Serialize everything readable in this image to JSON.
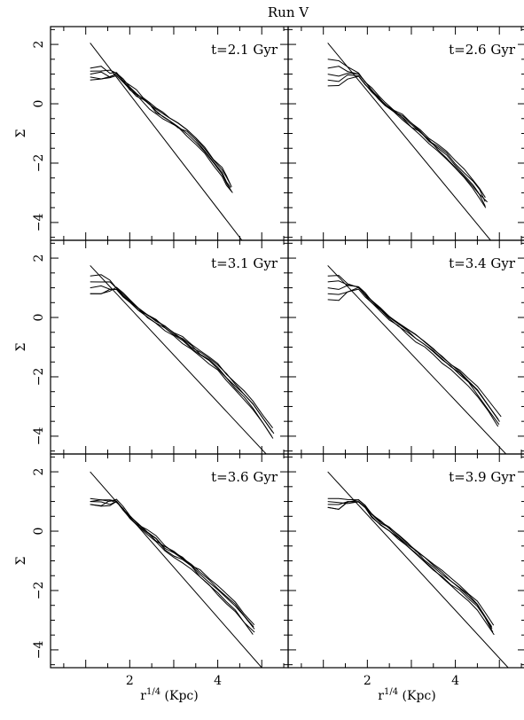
{
  "figure": {
    "title": "Run V",
    "ylabel": "Σ",
    "xlabel_base": "r",
    "xlabel_sup": "1/4",
    "xlabel_unit": "(Kpc)"
  },
  "chart_data": [
    {
      "type": "line",
      "annotation": "t=2.1 Gyr",
      "xlim": [
        0.2,
        5.6
      ],
      "ylim": [
        -4.6,
        2.6
      ],
      "xticks": [
        2,
        4
      ],
      "yticks": [
        2,
        0,
        -2,
        -4
      ],
      "fit_line": {
        "x": [
          1.1,
          4.55
        ],
        "y": [
          2.05,
          -4.6
        ]
      },
      "profile": {
        "x": [
          1.7,
          2.0,
          2.3,
          2.6,
          2.9,
          3.3,
          3.7,
          4.1,
          4.3
        ],
        "y": [
          1.0,
          0.55,
          0.15,
          -0.25,
          -0.55,
          -0.95,
          -1.55,
          -2.3,
          -2.85
        ]
      },
      "core_start_y": [
        0.8,
        0.9,
        1.0,
        1.1,
        1.2
      ]
    },
    {
      "type": "line",
      "annotation": "t=2.6 Gyr",
      "xlim": [
        0.2,
        5.6
      ],
      "ylim": [
        -4.6,
        2.6
      ],
      "xticks": [
        2,
        4
      ],
      "yticks": [
        2,
        0,
        -2,
        -4
      ],
      "fit_line": {
        "x": [
          1.1,
          4.8
        ],
        "y": [
          2.05,
          -4.6
        ]
      },
      "profile": {
        "x": [
          1.8,
          2.1,
          2.4,
          2.8,
          3.2,
          3.6,
          4.0,
          4.4,
          4.7
        ],
        "y": [
          1.0,
          0.45,
          0.0,
          -0.45,
          -0.95,
          -1.5,
          -2.05,
          -2.7,
          -3.35
        ]
      },
      "core_start_y": [
        0.6,
        0.8,
        1.0,
        1.2,
        1.5
      ]
    },
    {
      "type": "line",
      "annotation": "t=3.1 Gyr",
      "xlim": [
        0.2,
        5.6
      ],
      "ylim": [
        -4.6,
        2.6
      ],
      "xticks": [
        2,
        4
      ],
      "yticks": [
        2,
        0,
        -2,
        -4
      ],
      "fit_line": {
        "x": [
          1.1,
          5.1
        ],
        "y": [
          1.75,
          -4.6
        ]
      },
      "profile": {
        "x": [
          1.7,
          2.0,
          2.4,
          2.8,
          3.2,
          3.6,
          4.0,
          4.4,
          4.8,
          5.25
        ],
        "y": [
          1.0,
          0.55,
          0.05,
          -0.35,
          -0.75,
          -1.2,
          -1.65,
          -2.3,
          -2.95,
          -3.9
        ]
      },
      "core_start_y": [
        0.8,
        1.0,
        1.2,
        1.4
      ]
    },
    {
      "type": "line",
      "annotation": "t=3.4 Gyr",
      "xlim": [
        0.2,
        5.6
      ],
      "ylim": [
        -4.6,
        2.6
      ],
      "xticks": [
        2,
        4
      ],
      "yticks": [
        2,
        0,
        -2,
        -4
      ],
      "fit_line": {
        "x": [
          1.1,
          5.15
        ],
        "y": [
          1.75,
          -4.6
        ]
      },
      "profile": {
        "x": [
          1.8,
          2.1,
          2.5,
          2.9,
          3.3,
          3.7,
          4.1,
          4.5,
          5.0
        ],
        "y": [
          1.0,
          0.55,
          0.0,
          -0.45,
          -0.9,
          -1.4,
          -1.9,
          -2.5,
          -3.5
        ]
      },
      "core_start_y": [
        0.6,
        0.8,
        1.0,
        1.2,
        1.4
      ]
    },
    {
      "type": "line",
      "annotation": "t=3.6 Gyr",
      "xlim": [
        0.2,
        5.6
      ],
      "ylim": [
        -4.6,
        2.6
      ],
      "xticks": [
        2,
        4
      ],
      "yticks": [
        2,
        0,
        -2,
        -4
      ],
      "fit_line": {
        "x": [
          1.1,
          5.0
        ],
        "y": [
          2.0,
          -4.6
        ]
      },
      "profile": {
        "x": [
          1.7,
          2.0,
          2.4,
          2.8,
          3.2,
          3.6,
          4.0,
          4.4,
          4.8
        ],
        "y": [
          1.0,
          0.5,
          -0.05,
          -0.55,
          -0.95,
          -1.45,
          -2.0,
          -2.55,
          -3.3
        ]
      },
      "core_start_y": [
        0.9,
        1.0,
        1.1
      ]
    },
    {
      "type": "line",
      "annotation": "t=3.9 Gyr",
      "xlim": [
        0.2,
        5.6
      ],
      "ylim": [
        -4.6,
        2.6
      ],
      "xticks": [
        2,
        4
      ],
      "yticks": [
        2,
        0,
        -2,
        -4
      ],
      "fit_line": {
        "x": [
          1.1,
          5.2
        ],
        "y": [
          2.0,
          -4.6
        ]
      },
      "profile": {
        "x": [
          1.8,
          2.1,
          2.5,
          2.9,
          3.3,
          3.7,
          4.1,
          4.5,
          4.85
        ],
        "y": [
          1.0,
          0.55,
          0.05,
          -0.45,
          -0.95,
          -1.45,
          -1.95,
          -2.5,
          -3.3
        ]
      },
      "core_start_y": [
        0.8,
        0.9,
        1.0,
        1.1
      ]
    }
  ]
}
